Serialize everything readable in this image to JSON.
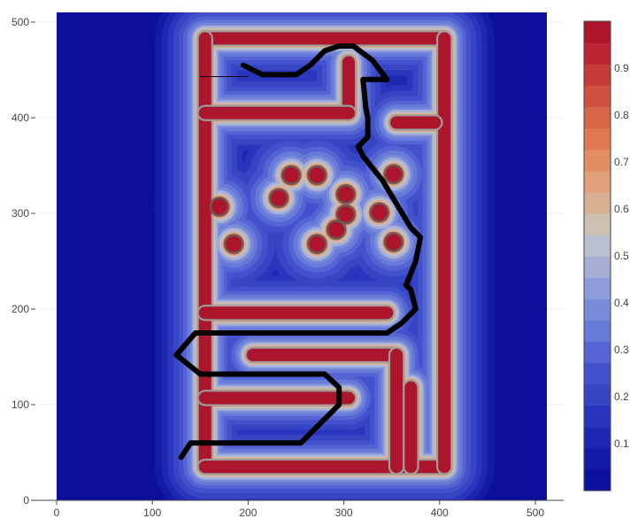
{
  "chart_data": {
    "type": "heatmap",
    "subtype": "contour",
    "title": "",
    "xlabel": "",
    "ylabel": "",
    "xlim": [
      -25,
      512
    ],
    "ylim": [
      0,
      512
    ],
    "x_ticks": [
      0,
      100,
      200,
      300,
      400,
      500
    ],
    "y_ticks": [
      0,
      100,
      200,
      300,
      400,
      500
    ],
    "grid": true,
    "colorbar": {
      "ticks": [
        0.1,
        0.2,
        0.3,
        0.4,
        0.5,
        0.6,
        0.7,
        0.8,
        0.9
      ],
      "range": [
        0,
        1
      ],
      "colors": [
        "#0b0f9b",
        "#141aa6",
        "#1d27b2",
        "#2a35bd",
        "#3545c4",
        "#4252cc",
        "#5563d4",
        "#667ad8",
        "#7a8bdb",
        "#8e9cdc",
        "#a5afd6",
        "#b9bfce",
        "#cdc0b3",
        "#d9b092",
        "#e0a07a",
        "#e38d62",
        "#df7a52",
        "#d76547",
        "#cf513f",
        "#c53b37",
        "#bb2632",
        "#ac152b"
      ]
    },
    "field_levels": {
      "background": 0.03,
      "obstacle": 0.97
    },
    "walls": [
      [
        [
          155,
          483
        ],
        [
          405,
          483
        ]
      ],
      [
        [
          155,
          483
        ],
        [
          155,
          35
        ]
      ],
      [
        [
          155,
          35
        ],
        [
          405,
          35
        ]
      ],
      [
        [
          405,
          35
        ],
        [
          405,
          483
        ]
      ],
      [
        [
          305,
          458
        ],
        [
          305,
          405
        ]
      ],
      [
        [
          305,
          405
        ],
        [
          155,
          405
        ]
      ],
      [
        [
          355,
          395
        ],
        [
          395,
          395
        ]
      ],
      [
        [
          155,
          196
        ],
        [
          345,
          196
        ]
      ],
      [
        [
          205,
          152
        ],
        [
          355,
          152
        ]
      ],
      [
        [
          355,
          152
        ],
        [
          355,
          35
        ]
      ],
      [
        [
          155,
          107
        ],
        [
          305,
          107
        ]
      ],
      [
        [
          370,
          118
        ],
        [
          370,
          35
        ]
      ]
    ],
    "circles": [
      [
        170,
        307
      ],
      [
        185,
        268
      ],
      [
        245,
        340
      ],
      [
        232,
        316
      ],
      [
        272,
        340
      ],
      [
        272,
        268
      ],
      [
        292,
        283
      ],
      [
        302,
        320
      ],
      [
        302,
        299
      ],
      [
        337,
        301
      ],
      [
        352,
        341
      ],
      [
        352,
        270
      ]
    ],
    "path": [
      [
        130,
        45
      ],
      [
        140,
        60
      ],
      [
        255,
        60
      ],
      [
        295,
        100
      ],
      [
        295,
        118
      ],
      [
        280,
        132
      ],
      [
        150,
        132
      ],
      [
        125,
        152
      ],
      [
        145,
        175
      ],
      [
        345,
        175
      ],
      [
        360,
        185
      ],
      [
        375,
        200
      ],
      [
        370,
        220
      ],
      [
        365,
        225
      ],
      [
        375,
        250
      ],
      [
        380,
        275
      ],
      [
        375,
        280
      ],
      [
        370,
        285
      ],
      [
        340,
        335
      ],
      [
        320,
        360
      ],
      [
        315,
        370
      ],
      [
        325,
        380
      ],
      [
        325,
        400
      ],
      [
        323,
        410
      ],
      [
        320,
        440
      ],
      [
        345,
        440
      ],
      [
        330,
        460
      ],
      [
        310,
        475
      ],
      [
        295,
        475
      ],
      [
        280,
        470
      ],
      [
        275,
        465
      ],
      [
        265,
        455
      ],
      [
        250,
        445
      ],
      [
        215,
        445
      ],
      [
        205,
        450
      ],
      [
        195,
        455
      ]
    ],
    "thin_line": [
      [
        150,
        443
      ],
      [
        200,
        443
      ]
    ],
    "line_width": 4
  }
}
